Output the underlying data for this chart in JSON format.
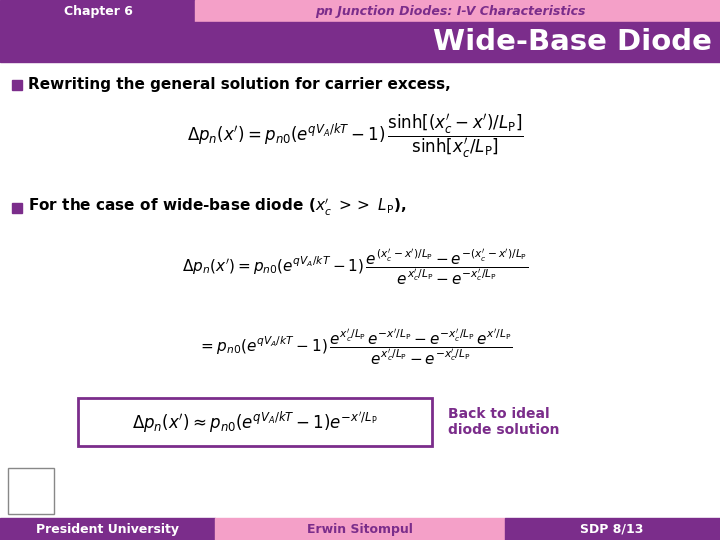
{
  "header_left_text": "Chapter 6",
  "header_right_text": "pn Junction Diodes: I-V Characteristics",
  "title_text": "Wide-Base Diode",
  "header_left_bg": "#7B2D8B",
  "header_right_bg": "#F4A0C8",
  "title_bg": "#7B2D8B",
  "main_bg": "#FFFFFF",
  "bullet_color": "#7B2D8B",
  "bullet1_text": "Rewriting the general solution for carrier excess,",
  "footer_left_text": "President University",
  "footer_center_text": "Erwin Sitompul",
  "footer_right_text": "SDP 8/13",
  "footer_left_bg": "#7B2D8B",
  "footer_center_bg": "#F4A0C8",
  "footer_right_bg": "#7B2D8B",
  "box_border_color": "#7B2D8B",
  "annotation_text": "Back to ideal\ndiode solution"
}
